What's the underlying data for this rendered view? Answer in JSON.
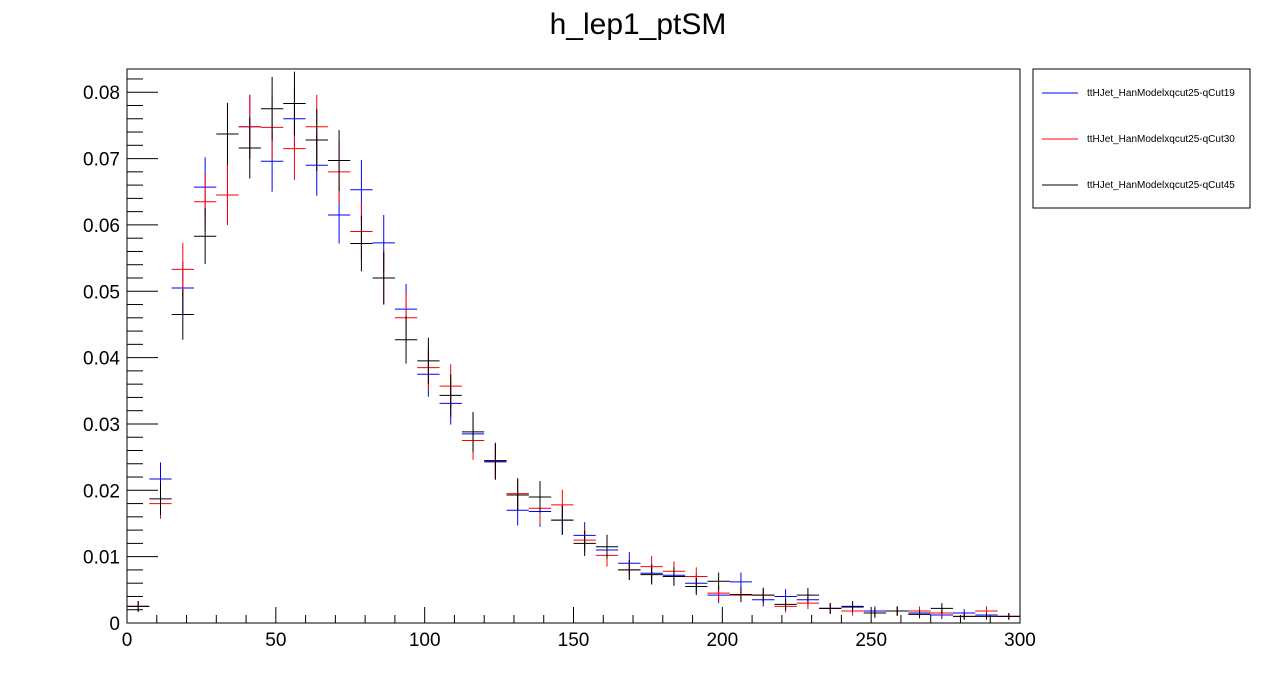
{
  "chart_data": {
    "type": "scatter",
    "title": "h_lep1_ptSM",
    "xlabel": "",
    "ylabel": "",
    "xlim": [
      0,
      300
    ],
    "ylim": [
      0,
      0.0835
    ],
    "bin_width": 7.5,
    "x_ticks": [
      "0",
      "50",
      "100",
      "150",
      "200",
      "250",
      "300"
    ],
    "y_ticks": [
      "0",
      "0.01",
      "0.02",
      "0.03",
      "0.04",
      "0.05",
      "0.06",
      "0.07",
      "0.08"
    ],
    "legend_position": "top-right, outside plot",
    "grid": false,
    "x": [
      3.75,
      11.25,
      18.75,
      26.25,
      33.75,
      41.25,
      48.75,
      56.25,
      63.75,
      71.25,
      78.75,
      86.25,
      93.75,
      101.25,
      108.75,
      116.25,
      123.75,
      131.25,
      138.75,
      146.25,
      153.75,
      161.25,
      168.75,
      176.25,
      183.75,
      191.25,
      198.75,
      206.25,
      213.75,
      221.25,
      228.75,
      236.25,
      243.75,
      251.25,
      258.75,
      266.25,
      273.75,
      281.25,
      288.75,
      296.25
    ],
    "series": [
      {
        "name": "ttHJet_HanModelxqcut25-qCut19",
        "color": "#0000ff",
        "values": [
          0.0025,
          0.0217,
          0.0505,
          0.0657,
          0.0645,
          0.0748,
          0.0696,
          0.076,
          0.069,
          0.0615,
          0.0653,
          0.0573,
          0.0473,
          0.0375,
          0.0331,
          0.0285,
          0.0245,
          0.017,
          0.0168,
          0.0155,
          0.0132,
          0.011,
          0.009,
          0.0075,
          0.0072,
          0.006,
          0.0042,
          0.0062,
          0.0035,
          0.004,
          0.0035,
          0.0022,
          0.0024,
          0.0018,
          0.0018,
          0.0015,
          0.0012,
          0.0015,
          0.0012,
          0.001
        ],
        "errors": [
          0.0008,
          0.0025,
          0.004,
          0.0045,
          0.0045,
          0.0048,
          0.0046,
          0.0048,
          0.0046,
          0.0043,
          0.0045,
          0.0042,
          0.0038,
          0.0034,
          0.0032,
          0.0029,
          0.0027,
          0.0023,
          0.0023,
          0.0022,
          0.002,
          0.0018,
          0.0017,
          0.0015,
          0.0015,
          0.0014,
          0.0012,
          0.0014,
          0.001,
          0.0011,
          0.001,
          0.0008,
          0.0008,
          0.0007,
          0.0007,
          0.0006,
          0.0006,
          0.0006,
          0.0006,
          0.0005
        ]
      },
      {
        "name": "ttHJet_HanModelxqcut25-qCut30",
        "color": "#ff0000",
        "values": [
          0.0025,
          0.018,
          0.0533,
          0.0635,
          0.0645,
          0.0748,
          0.0747,
          0.0715,
          0.0748,
          0.068,
          0.059,
          0.052,
          0.046,
          0.0385,
          0.0357,
          0.0275,
          0.0243,
          0.0195,
          0.0173,
          0.0178,
          0.0125,
          0.0102,
          0.008,
          0.0085,
          0.0078,
          0.007,
          0.0045,
          0.0042,
          0.0042,
          0.0025,
          0.003,
          0.0022,
          0.0018,
          0.0015,
          0.0018,
          0.0018,
          0.0015,
          0.001,
          0.0018,
          0.001
        ],
        "errors": [
          0.0008,
          0.0023,
          0.004,
          0.0044,
          0.0045,
          0.0048,
          0.0048,
          0.0047,
          0.0048,
          0.0046,
          0.0043,
          0.004,
          0.0038,
          0.0034,
          0.0033,
          0.0029,
          0.0027,
          0.0024,
          0.0023,
          0.0023,
          0.0019,
          0.0017,
          0.0015,
          0.0016,
          0.0015,
          0.0014,
          0.0012,
          0.0011,
          0.0011,
          0.0009,
          0.0009,
          0.0008,
          0.0007,
          0.0007,
          0.0007,
          0.0007,
          0.0006,
          0.0005,
          0.0007,
          0.0005
        ]
      },
      {
        "name": "ttHJet_HanModelxqcut25-qCut45",
        "color": "#000000",
        "values": [
          0.0025,
          0.0187,
          0.0465,
          0.0583,
          0.0737,
          0.0716,
          0.0775,
          0.0783,
          0.0728,
          0.0697,
          0.0572,
          0.052,
          0.0427,
          0.0395,
          0.0343,
          0.0288,
          0.0243,
          0.0193,
          0.019,
          0.0155,
          0.012,
          0.0115,
          0.008,
          0.0073,
          0.007,
          0.0055,
          0.0063,
          0.0043,
          0.0042,
          0.0028,
          0.0042,
          0.0022,
          0.0025,
          0.0015,
          0.0018,
          0.0013,
          0.0022,
          0.001,
          0.001,
          0.001
        ],
        "errors": [
          0.0008,
          0.0024,
          0.0038,
          0.0042,
          0.0047,
          0.0046,
          0.0048,
          0.0048,
          0.0047,
          0.0046,
          0.0042,
          0.004,
          0.0036,
          0.0035,
          0.0032,
          0.003,
          0.0027,
          0.0024,
          0.0024,
          0.0022,
          0.0019,
          0.0018,
          0.0015,
          0.0015,
          0.0014,
          0.0013,
          0.0013,
          0.0011,
          0.0011,
          0.0009,
          0.0011,
          0.0008,
          0.0008,
          0.0007,
          0.0007,
          0.0006,
          0.0008,
          0.0005,
          0.0005,
          0.0005
        ]
      }
    ]
  }
}
